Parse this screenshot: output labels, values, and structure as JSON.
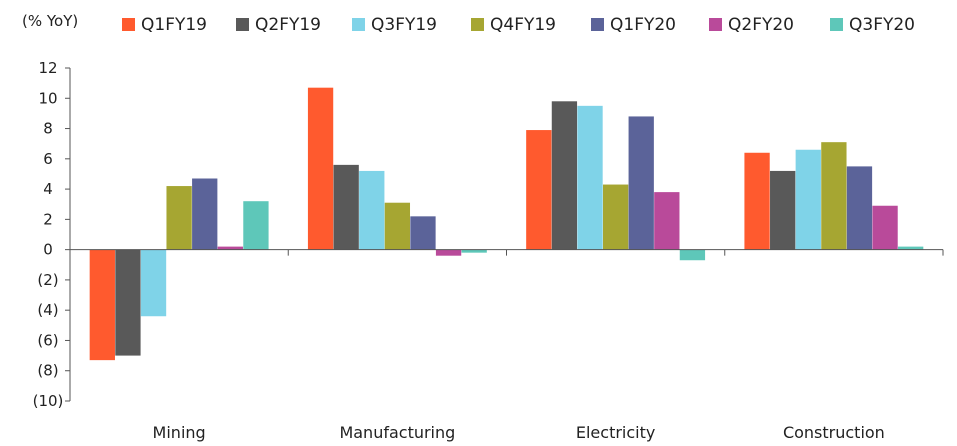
{
  "chart_data": {
    "type": "bar",
    "unit_label": "(% YoY)",
    "categories": [
      "Mining",
      "Manufacturing",
      "Electricity",
      "Construction"
    ],
    "series": [
      {
        "name": "Q1FY19",
        "color": "#ff5a2e",
        "values": [
          -7.3,
          10.7,
          7.9,
          6.4
        ]
      },
      {
        "name": "Q2FY19",
        "color": "#595959",
        "values": [
          -7.0,
          5.6,
          9.8,
          5.2
        ]
      },
      {
        "name": "Q3FY19",
        "color": "#7fd3e8",
        "values": [
          -4.4,
          5.2,
          9.5,
          6.6
        ]
      },
      {
        "name": "Q4FY19",
        "color": "#a6a632",
        "values": [
          4.2,
          3.1,
          4.3,
          7.1
        ]
      },
      {
        "name": "Q1FY20",
        "color": "#5b6399",
        "values": [
          4.7,
          2.2,
          8.8,
          5.5
        ]
      },
      {
        "name": "Q2FY20",
        "color": "#b94a9a",
        "values": [
          0.2,
          -0.4,
          3.8,
          2.9
        ]
      },
      {
        "name": "Q3FY20",
        "color": "#5ec7b9",
        "values": [
          3.2,
          -0.2,
          -0.7,
          0.2
        ]
      }
    ],
    "ylim": [
      -10,
      12
    ],
    "yticks": [
      12,
      10,
      8,
      6,
      4,
      2,
      0,
      -2,
      -4,
      -6,
      -8,
      -10
    ],
    "ytick_labels": [
      "12",
      "10",
      "8",
      "6",
      "4",
      "2",
      "0",
      "(2)",
      "(4)",
      "(6)",
      "(8)",
      "(10)"
    ],
    "legend_position": "top",
    "grid": false
  }
}
